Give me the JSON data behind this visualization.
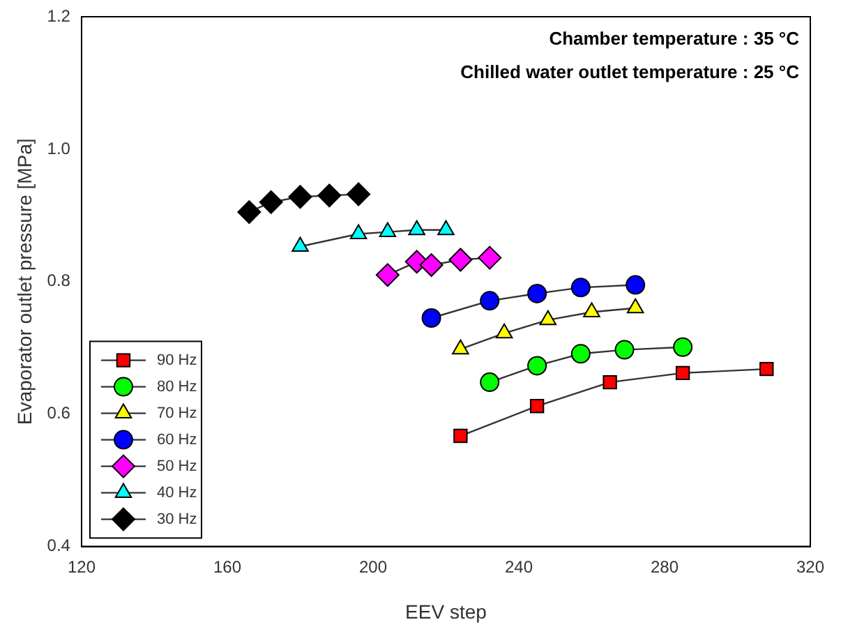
{
  "chart_data": {
    "type": "line",
    "xlabel": "EEV step",
    "ylabel": "Evaporator outlet pressure [MPa]",
    "annotations": [
      "Chamber temperature : 35 °C",
      "Chilled water outlet temperature : 25 °C"
    ],
    "xlim": [
      120,
      320
    ],
    "xticks": [
      120,
      160,
      200,
      240,
      280,
      320
    ],
    "ylim": [
      0.4,
      1.2
    ],
    "yticks": [
      0.4,
      0.6,
      0.8,
      {
        "value": 1.0,
        "label": "1.0"
      },
      1.2
    ],
    "grid": false,
    "legend": "bottom left",
    "series": [
      {
        "name": "90 Hz",
        "color": "#ff0000",
        "marker": "square",
        "x": [
          224,
          245,
          265,
          285,
          308
        ],
        "values": [
          0.567,
          0.612,
          0.648,
          0.662,
          0.668
        ]
      },
      {
        "name": "80 Hz",
        "color": "#00ff00",
        "marker": "circle",
        "x": [
          232,
          245,
          257,
          269,
          285
        ],
        "values": [
          0.648,
          0.673,
          0.691,
          0.697,
          0.701
        ]
      },
      {
        "name": "70 Hz",
        "color": "#ffff00",
        "marker": "triangle",
        "x": [
          224,
          236,
          248,
          260,
          272
        ],
        "values": [
          0.698,
          0.722,
          0.742,
          0.754,
          0.76
        ]
      },
      {
        "name": "60 Hz",
        "color": "#0000ff",
        "marker": "circle",
        "x": [
          216,
          232,
          245,
          257,
          272
        ],
        "values": [
          0.745,
          0.771,
          0.782,
          0.791,
          0.795
        ]
      },
      {
        "name": "50 Hz",
        "color": "#ff00ff",
        "marker": "diamond",
        "x": [
          204,
          212,
          216,
          224,
          232
        ],
        "values": [
          0.81,
          0.83,
          0.825,
          0.833,
          0.836
        ]
      },
      {
        "name": "40 Hz",
        "color": "#00ffff",
        "marker": "triangle",
        "x": [
          180,
          196,
          204,
          212,
          220
        ],
        "values": [
          0.853,
          0.872,
          0.875,
          0.878,
          0.878
        ]
      },
      {
        "name": "30 Hz",
        "color": "#000000",
        "marker": "diamond",
        "x": [
          166,
          172,
          180,
          188,
          196
        ],
        "values": [
          0.905,
          0.92,
          0.928,
          0.93,
          0.932
        ]
      }
    ]
  }
}
